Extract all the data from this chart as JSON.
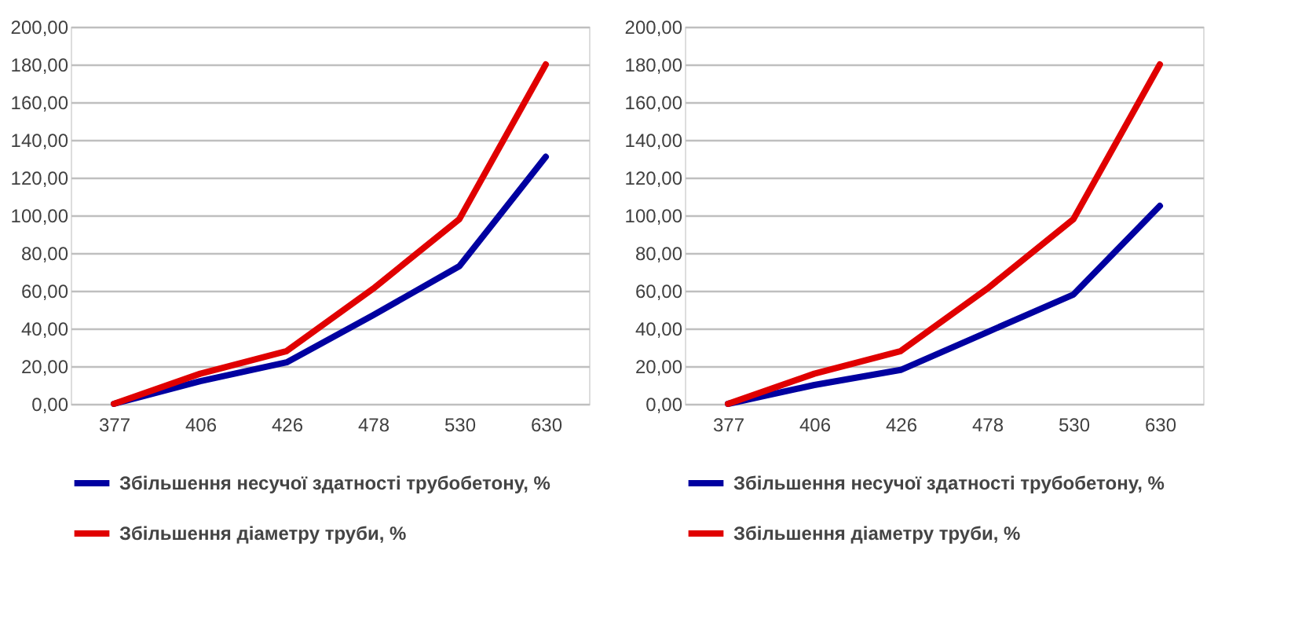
{
  "chart_data": [
    {
      "type": "line",
      "categories": [
        "377",
        "406",
        "426",
        "478",
        "530",
        "630"
      ],
      "ylim": [
        0,
        200
      ],
      "yticks": [
        {
          "value": 0,
          "label": "0,00"
        },
        {
          "value": 20,
          "label": "20,00"
        },
        {
          "value": 40,
          "label": "40,00"
        },
        {
          "value": 60,
          "label": "60,00"
        },
        {
          "value": 80,
          "label": "80,00"
        },
        {
          "value": 100,
          "label": "100,00"
        },
        {
          "value": 120,
          "label": "120,00"
        },
        {
          "value": 140,
          "label": "140,00"
        },
        {
          "value": 160,
          "label": "160,00"
        },
        {
          "value": 180,
          "label": "180,00"
        },
        {
          "value": 200,
          "label": "200,00"
        }
      ],
      "grid": "y",
      "legend": "bottom",
      "marker": "none",
      "line_style": "solid",
      "series": [
        {
          "name": "Збільшення несучої здатності трубобетону, %",
          "color": "#0000a0",
          "values": [
            0,
            12,
            22,
            47,
            73,
            131
          ]
        },
        {
          "name": "Збільшення діаметру труби, %",
          "color": "#e00000",
          "values": [
            0,
            16,
            28,
            61,
            98,
            180
          ]
        }
      ]
    },
    {
      "type": "line",
      "categories": [
        "377",
        "406",
        "426",
        "478",
        "530",
        "630"
      ],
      "ylim": [
        0,
        200
      ],
      "yticks": [
        {
          "value": 0,
          "label": "0,00"
        },
        {
          "value": 20,
          "label": "20,00"
        },
        {
          "value": 40,
          "label": "40,00"
        },
        {
          "value": 60,
          "label": "60,00"
        },
        {
          "value": 80,
          "label": "80,00"
        },
        {
          "value": 100,
          "label": "100,00"
        },
        {
          "value": 120,
          "label": "120,00"
        },
        {
          "value": 140,
          "label": "140,00"
        },
        {
          "value": 160,
          "label": "160,00"
        },
        {
          "value": 180,
          "label": "180,00"
        },
        {
          "value": 200,
          "label": "200,00"
        }
      ],
      "grid": "y",
      "legend": "bottom",
      "marker": "none",
      "line_style": "solid",
      "series": [
        {
          "name": "Збільшення несучої здатності трубобетону, %",
          "color": "#0000a0",
          "values": [
            0,
            10,
            18,
            38,
            58,
            105
          ]
        },
        {
          "name": "Збільшення діаметру труби, %",
          "color": "#e00000",
          "values": [
            0,
            16,
            28,
            61,
            98,
            180
          ]
        }
      ]
    }
  ]
}
